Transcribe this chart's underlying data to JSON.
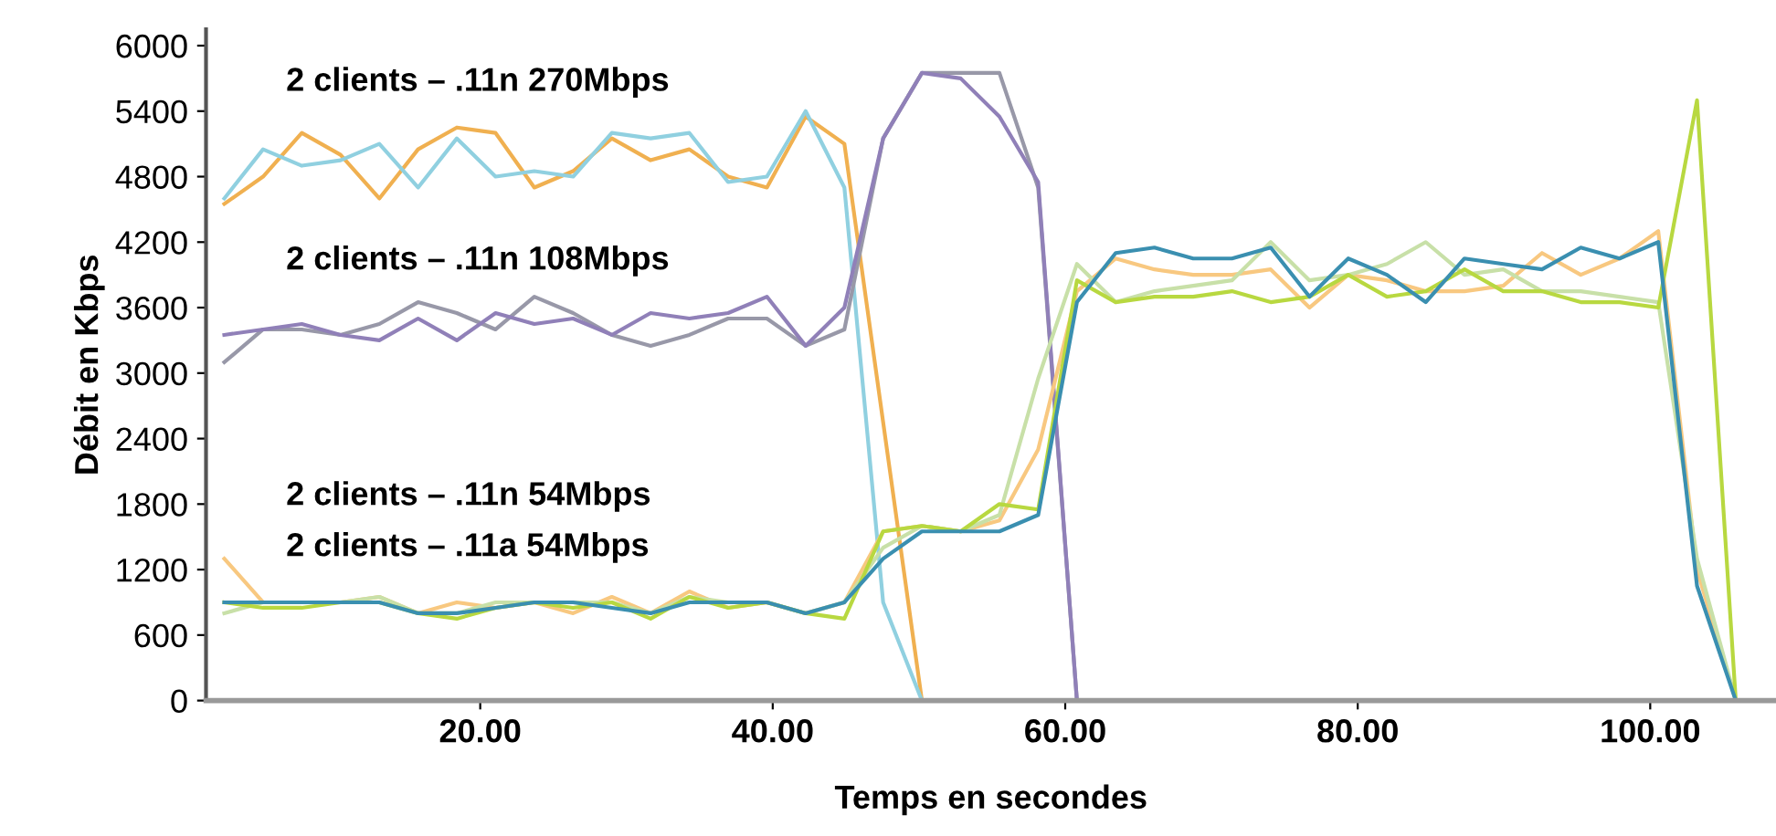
{
  "chart_data": {
    "type": "line",
    "xlabel": "Temps en secondes",
    "ylabel": "Débit en Kbps",
    "x": [
      2.5,
      5.15,
      7.8,
      10.45,
      13.1,
      15.75,
      18.4,
      21.05,
      23.7,
      26.35,
      29,
      31.65,
      34.3,
      36.95,
      39.6,
      42.25,
      44.9,
      47.55,
      50.2,
      52.85,
      55.5,
      58.15,
      60.8,
      63.45,
      66.1,
      68.75,
      71.4,
      74.05,
      76.7,
      79.35,
      82,
      84.65,
      87.3,
      89.95,
      92.6,
      95.25,
      97.9,
      100.55,
      103.2,
      105.85
    ],
    "series": [
      {
        "color": "#f0b050",
        "values": [
          4550,
          4800,
          5200,
          5000,
          4600,
          5050,
          5250,
          5200,
          4700,
          4850,
          5150,
          4950,
          5050,
          4800,
          4700,
          5350,
          5100,
          2550,
          0,
          null,
          null,
          null,
          null,
          null,
          null,
          null,
          null,
          null,
          null,
          null,
          null,
          null,
          null,
          null,
          null,
          null,
          null,
          null,
          null,
          null
        ]
      },
      {
        "color": "#90d0e0",
        "values": [
          4600,
          5050,
          4900,
          4950,
          5100,
          4700,
          5150,
          4800,
          4850,
          4800,
          5200,
          5150,
          5200,
          4750,
          4800,
          5400,
          4700,
          900,
          0,
          null,
          null,
          null,
          null,
          null,
          null,
          null,
          null,
          null,
          null,
          null,
          null,
          null,
          null,
          null,
          null,
          null,
          null,
          null,
          null,
          null
        ]
      },
      {
        "color": "#9898a8",
        "values": [
          3100,
          3400,
          3400,
          3350,
          3450,
          3650,
          3550,
          3400,
          3700,
          3550,
          3350,
          3250,
          3350,
          3500,
          3500,
          3250,
          3400,
          5150,
          5750,
          5750,
          5750,
          4700,
          0,
          null,
          null,
          null,
          null,
          null,
          null,
          null,
          null,
          null,
          null,
          null,
          null,
          null,
          null,
          null,
          null,
          null
        ]
      },
      {
        "color": "#9080b8",
        "values": [
          3350,
          3400,
          3450,
          3350,
          3300,
          3500,
          3300,
          3550,
          3450,
          3500,
          3350,
          3550,
          3500,
          3550,
          3700,
          3250,
          3600,
          5150,
          5750,
          5700,
          5350,
          4750,
          0,
          null,
          null,
          null,
          null,
          null,
          null,
          null,
          null,
          null,
          null,
          null,
          null,
          null,
          null,
          null,
          null,
          null
        ]
      },
      {
        "color": "#f8c880",
        "values": [
          1300,
          900,
          900,
          900,
          950,
          800,
          900,
          850,
          900,
          800,
          950,
          800,
          1000,
          850,
          900,
          800,
          900,
          1550,
          1600,
          1550,
          1650,
          2300,
          3750,
          4050,
          3950,
          3900,
          3900,
          3950,
          3600,
          3900,
          3850,
          3750,
          3750,
          3800,
          4100,
          3900,
          4050,
          4300,
          1200,
          0
        ]
      },
      {
        "color": "#c8e0a8",
        "values": [
          800,
          900,
          900,
          900,
          950,
          800,
          800,
          900,
          900,
          900,
          900,
          800,
          950,
          900,
          900,
          800,
          900,
          1400,
          1600,
          1550,
          1700,
          2950,
          4000,
          3650,
          3750,
          3800,
          3850,
          4200,
          3850,
          3900,
          4000,
          4200,
          3900,
          3950,
          3750,
          3750,
          3700,
          3650,
          1300,
          0
        ]
      },
      {
        "color": "#b8d840",
        "values": [
          900,
          850,
          850,
          900,
          900,
          800,
          750,
          850,
          900,
          850,
          900,
          750,
          950,
          850,
          900,
          800,
          750,
          1550,
          1600,
          1550,
          1800,
          1750,
          3850,
          3650,
          3700,
          3700,
          3750,
          3650,
          3700,
          3900,
          3700,
          3750,
          3950,
          3750,
          3750,
          3650,
          3650,
          3600,
          5500,
          0
        ]
      },
      {
        "color": "#3a8fb0",
        "values": [
          900,
          900,
          900,
          900,
          900,
          800,
          800,
          850,
          900,
          900,
          850,
          800,
          900,
          900,
          900,
          800,
          900,
          1300,
          1550,
          1550,
          1550,
          1700,
          3650,
          4100,
          4150,
          4050,
          4050,
          4150,
          3700,
          4050,
          3900,
          3650,
          4050,
          4000,
          3950,
          4150,
          4050,
          4200,
          1050,
          0
        ]
      }
    ],
    "annotations": [
      "2 clients – .11n 270Mbps",
      "2 clients – .11n 108Mbps",
      "2 clients – .11n 54Mbps",
      "2 clients – .11a 54Mbps"
    ],
    "xlim": [
      1.25,
      108.6
    ],
    "ylim": [
      0,
      6150
    ],
    "xticks": [
      {
        "value": 20,
        "label": "20.00"
      },
      {
        "value": 40,
        "label": "40.00"
      },
      {
        "value": 60,
        "label": "60.00"
      },
      {
        "value": 80,
        "label": "80.00"
      },
      {
        "value": 100,
        "label": "100.00"
      }
    ],
    "yticks": [
      0,
      600,
      1200,
      1800,
      2400,
      3000,
      3600,
      4200,
      4800,
      5400,
      6000
    ],
    "grid": false,
    "legend": false,
    "marker": "none",
    "line_style": "solid"
  }
}
